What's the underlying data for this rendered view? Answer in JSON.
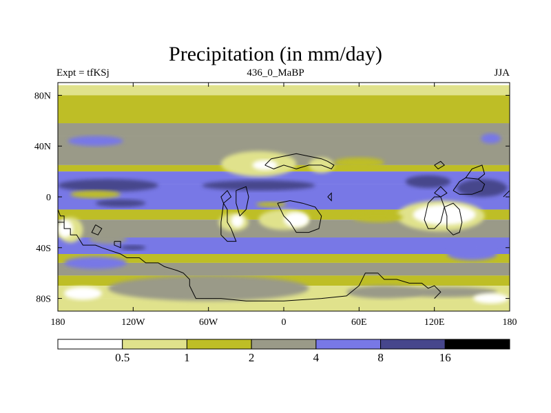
{
  "title": "Precipitation (in mm/day)",
  "subtitle_left": "Expt = tfKSj",
  "subtitle_center": "436_0_MaBP",
  "subtitle_right": "JJA",
  "colors": {
    "c0": "#ffffff",
    "c1": "#e0e28c",
    "c2": "#bebe26",
    "c3": "#9a9a88",
    "c4": "#7878e6",
    "c5": "#46468c",
    "c6": "#000000",
    "coast": "#000000"
  },
  "chart_data": {
    "type": "heatmap",
    "title": "Precipitation (in mm/day)",
    "xlabel": "",
    "ylabel": "",
    "xlim": [
      -180,
      180
    ],
    "ylim": [
      -90,
      90
    ],
    "x_ticks": [
      {
        "value": -180,
        "label": "180"
      },
      {
        "value": -120,
        "label": "120W"
      },
      {
        "value": -60,
        "label": "60W"
      },
      {
        "value": 0,
        "label": "0"
      },
      {
        "value": 60,
        "label": "60E"
      },
      {
        "value": 120,
        "label": "120E"
      },
      {
        "value": 180,
        "label": "180"
      }
    ],
    "y_ticks": [
      {
        "value": 80,
        "label": "80N"
      },
      {
        "value": 40,
        "label": "40N"
      },
      {
        "value": 0,
        "label": "0"
      },
      {
        "value": -40,
        "label": "40S"
      },
      {
        "value": -80,
        "label": "80S"
      }
    ],
    "colorbar": {
      "levels": [
        0.5,
        1,
        2,
        4,
        8,
        16
      ],
      "labels": [
        "0.5",
        "1",
        "2",
        "4",
        "8",
        "16"
      ],
      "colors": [
        "#ffffff",
        "#e0e28c",
        "#bebe26",
        "#9a9a88",
        "#7878e6",
        "#46468c",
        "#000000"
      ]
    },
    "lat_bands": [
      {
        "lat": [
          88,
          90
        ],
        "color": "#ffffff"
      },
      {
        "lat": [
          80,
          88
        ],
        "color": "#e0e28c"
      },
      {
        "lat": [
          58,
          80
        ],
        "color": "#bebe26"
      },
      {
        "lat": [
          48,
          58
        ],
        "color": "#9a9a88"
      },
      {
        "lat": [
          25,
          48
        ],
        "color": "#9a9a88"
      },
      {
        "lat": [
          20,
          25
        ],
        "color": "#bebe26"
      },
      {
        "lat": [
          10,
          20
        ],
        "color": "#7878e6"
      },
      {
        "lat": [
          -10,
          10
        ],
        "color": "#7878e6"
      },
      {
        "lat": [
          -18,
          -10
        ],
        "color": "#bebe26"
      },
      {
        "lat": [
          -32,
          -18
        ],
        "color": "#9a9a88"
      },
      {
        "lat": [
          -45,
          -32
        ],
        "color": "#7878e6"
      },
      {
        "lat": [
          -52,
          -45
        ],
        "color": "#bebe26"
      },
      {
        "lat": [
          -62,
          -52
        ],
        "color": "#9a9a88"
      },
      {
        "lat": [
          -70,
          -62
        ],
        "color": "#bebe26"
      },
      {
        "lat": [
          -80,
          -70
        ],
        "color": "#e0e28c"
      },
      {
        "lat": [
          -90,
          -80
        ],
        "color": "#e0e28c"
      }
    ],
    "blobs": [
      {
        "lon": -150,
        "lat": 44,
        "rx": 22,
        "ry": 4,
        "color": "#7878e6"
      },
      {
        "lon": 165,
        "lat": 46,
        "rx": 8,
        "ry": 4,
        "color": "#7878e6"
      },
      {
        "lon": -20,
        "lat": 26,
        "rx": 30,
        "ry": 10,
        "color": "#e0e28c"
      },
      {
        "lon": -15,
        "lat": 25,
        "rx": 10,
        "ry": 4,
        "color": "#ffffff"
      },
      {
        "lon": 30,
        "lat": 25,
        "rx": 10,
        "ry": 6,
        "color": "#e0e28c"
      },
      {
        "lon": 60,
        "lat": 27,
        "rx": 20,
        "ry": 4,
        "color": "#bebe26"
      },
      {
        "lon": -140,
        "lat": 9,
        "rx": 40,
        "ry": 5,
        "color": "#46468c"
      },
      {
        "lon": -20,
        "lat": 9,
        "rx": 45,
        "ry": 4,
        "color": "#46468c"
      },
      {
        "lon": 158,
        "lat": 7,
        "rx": 20,
        "ry": 7,
        "color": "#46468c"
      },
      {
        "lon": 115,
        "lat": 12,
        "rx": 18,
        "ry": 5,
        "color": "#46468c"
      },
      {
        "lon": -130,
        "lat": -5,
        "rx": 20,
        "ry": 3,
        "color": "#46468c"
      },
      {
        "lon": -150,
        "lat": 2,
        "rx": 20,
        "ry": 3,
        "color": "#bebe26"
      },
      {
        "lon": -10,
        "lat": -6,
        "rx": 12,
        "ry": 2,
        "color": "#bebe26"
      },
      {
        "lon": 0,
        "lat": -18,
        "rx": 20,
        "ry": 8,
        "color": "#e0e28c"
      },
      {
        "lon": 10,
        "lat": -18,
        "rx": 10,
        "ry": 6,
        "color": "#ffffff"
      },
      {
        "lon": -40,
        "lat": -20,
        "rx": 12,
        "ry": 7,
        "color": "#e0e28c"
      },
      {
        "lon": -37,
        "lat": -19,
        "rx": 5,
        "ry": 5,
        "color": "#ffffff"
      },
      {
        "lon": 125,
        "lat": -15,
        "rx": 35,
        "ry": 12,
        "color": "#e0e28c"
      },
      {
        "lon": 128,
        "lat": -14,
        "rx": 25,
        "ry": 8,
        "color": "#ffffff"
      },
      {
        "lon": 75,
        "lat": -16,
        "rx": 20,
        "ry": 4,
        "color": "#bebe26"
      },
      {
        "lon": -170,
        "lat": -26,
        "rx": 10,
        "ry": 10,
        "color": "#e0e28c"
      },
      {
        "lon": -174,
        "lat": -25,
        "rx": 6,
        "ry": 7,
        "color": "#ffffff"
      },
      {
        "lon": -140,
        "lat": -33,
        "rx": 15,
        "ry": 4,
        "color": "#9a9a88"
      },
      {
        "lon": -120,
        "lat": -40,
        "rx": 10,
        "ry": 2,
        "color": "#46468c"
      },
      {
        "lon": 150,
        "lat": -45,
        "rx": 20,
        "ry": 5,
        "color": "#7878e6"
      },
      {
        "lon": -150,
        "lat": -52,
        "rx": 25,
        "ry": 5,
        "color": "#7878e6"
      },
      {
        "lon": 130,
        "lat": -75,
        "rx": 40,
        "ry": 4,
        "color": "#9a9a88"
      },
      {
        "lon": -160,
        "lat": -76,
        "rx": 15,
        "ry": 5,
        "color": "#ffffff"
      },
      {
        "lon": 165,
        "lat": -80,
        "rx": 14,
        "ry": 4,
        "color": "#ffffff"
      },
      {
        "lon": -60,
        "lat": -72,
        "rx": 80,
        "ry": 10,
        "color": "#9a9a88"
      },
      {
        "lon": 80,
        "lat": -75,
        "rx": 30,
        "ry": 5,
        "color": "#9a9a88"
      }
    ],
    "coastlines": [
      [
        [
          -180,
          -20
        ],
        [
          -175,
          -20
        ],
        [
          -175,
          -25
        ],
        [
          -170,
          -25
        ],
        [
          -170,
          -30
        ],
        [
          -165,
          -30
        ],
        [
          -160,
          -38
        ],
        [
          -150,
          -38
        ],
        [
          -145,
          -40
        ],
        [
          -130,
          -45
        ],
        [
          -125,
          -48
        ],
        [
          -115,
          -48
        ],
        [
          -110,
          -52
        ],
        [
          -100,
          -52
        ],
        [
          -95,
          -55
        ],
        [
          -85,
          -58
        ],
        [
          -80,
          -60
        ],
        [
          -75,
          -65
        ],
        [
          -75,
          -70
        ],
        [
          -70,
          -80
        ],
        [
          -50,
          -80
        ],
        [
          -30,
          -82
        ],
        [
          0,
          -82
        ],
        [
          30,
          -80
        ],
        [
          50,
          -78
        ],
        [
          60,
          -70
        ],
        [
          65,
          -60
        ],
        [
          75,
          -60
        ],
        [
          80,
          -65
        ],
        [
          90,
          -65
        ],
        [
          100,
          -68
        ],
        [
          110,
          -68
        ],
        [
          115,
          -72
        ],
        [
          120,
          -70
        ],
        [
          125,
          -75
        ],
        [
          120,
          -80
        ]
      ],
      [
        [
          -180,
          -10
        ],
        [
          -178,
          -15
        ],
        [
          -175,
          -15
        ],
        [
          -175,
          -20
        ]
      ],
      [
        [
          -150,
          -22
        ],
        [
          -145,
          -25
        ],
        [
          -148,
          -30
        ],
        [
          -153,
          -28
        ],
        [
          -150,
          -22
        ]
      ],
      [
        [
          -135,
          -35
        ],
        [
          -130,
          -35
        ],
        [
          -130,
          -40
        ],
        [
          -135,
          -38
        ],
        [
          -135,
          -35
        ]
      ],
      [
        [
          -50,
          -30
        ],
        [
          -45,
          -35
        ],
        [
          -38,
          -35
        ],
        [
          -40,
          -30
        ],
        [
          -42,
          -25
        ],
        [
          -45,
          -20
        ],
        [
          -45,
          -10
        ],
        [
          -48,
          -5
        ],
        [
          -50,
          -20
        ],
        [
          -50,
          -30
        ]
      ],
      [
        [
          -38,
          5
        ],
        [
          -30,
          8
        ],
        [
          -28,
          0
        ],
        [
          -30,
          -10
        ],
        [
          -35,
          -15
        ],
        [
          -38,
          -5
        ],
        [
          -38,
          5
        ]
      ],
      [
        [
          -45,
          5
        ],
        [
          -42,
          0
        ],
        [
          -48,
          -5
        ],
        [
          -50,
          0
        ],
        [
          -45,
          5
        ]
      ],
      [
        [
          -15,
          25
        ],
        [
          -10,
          30
        ],
        [
          0,
          32
        ],
        [
          10,
          34
        ],
        [
          20,
          32
        ],
        [
          30,
          30
        ],
        [
          35,
          28
        ],
        [
          40,
          25
        ],
        [
          38,
          22
        ],
        [
          30,
          25
        ],
        [
          20,
          25
        ],
        [
          10,
          22
        ],
        [
          0,
          25
        ],
        [
          -8,
          22
        ],
        [
          -15,
          25
        ]
      ],
      [
        [
          -5,
          -5
        ],
        [
          5,
          -3
        ],
        [
          15,
          -5
        ],
        [
          25,
          -8
        ],
        [
          30,
          -15
        ],
        [
          28,
          -25
        ],
        [
          20,
          -28
        ],
        [
          10,
          -28
        ],
        [
          5,
          -20
        ],
        [
          0,
          -15
        ],
        [
          -5,
          -5
        ]
      ],
      [
        [
          35,
          0
        ],
        [
          38,
          3
        ],
        [
          38,
          -3
        ],
        [
          35,
          0
        ]
      ],
      [
        [
          120,
          3
        ],
        [
          125,
          8
        ],
        [
          130,
          3
        ],
        [
          125,
          0
        ],
        [
          120,
          3
        ]
      ],
      [
        [
          115,
          -5
        ],
        [
          120,
          0
        ],
        [
          125,
          0
        ],
        [
          128,
          -8
        ],
        [
          125,
          -20
        ],
        [
          120,
          -25
        ],
        [
          115,
          -25
        ],
        [
          112,
          -18
        ],
        [
          115,
          -5
        ]
      ],
      [
        [
          128,
          -8
        ],
        [
          130,
          -15
        ],
        [
          130,
          -25
        ],
        [
          135,
          -30
        ],
        [
          140,
          -28
        ],
        [
          142,
          -20
        ],
        [
          140,
          -10
        ],
        [
          135,
          -5
        ],
        [
          128,
          -8
        ]
      ],
      [
        [
          135,
          5
        ],
        [
          140,
          12
        ],
        [
          145,
          15
        ],
        [
          155,
          14
        ],
        [
          160,
          10
        ],
        [
          158,
          5
        ],
        [
          150,
          2
        ],
        [
          140,
          2
        ],
        [
          135,
          5
        ]
      ],
      [
        [
          145,
          15
        ],
        [
          150,
          22
        ],
        [
          158,
          25
        ],
        [
          160,
          18
        ],
        [
          155,
          14
        ]
      ],
      [
        [
          120,
          25
        ],
        [
          125,
          28
        ],
        [
          128,
          25
        ],
        [
          123,
          22
        ],
        [
          120,
          25
        ]
      ],
      [
        [
          175,
          0
        ],
        [
          180,
          5
        ]
      ]
    ]
  }
}
